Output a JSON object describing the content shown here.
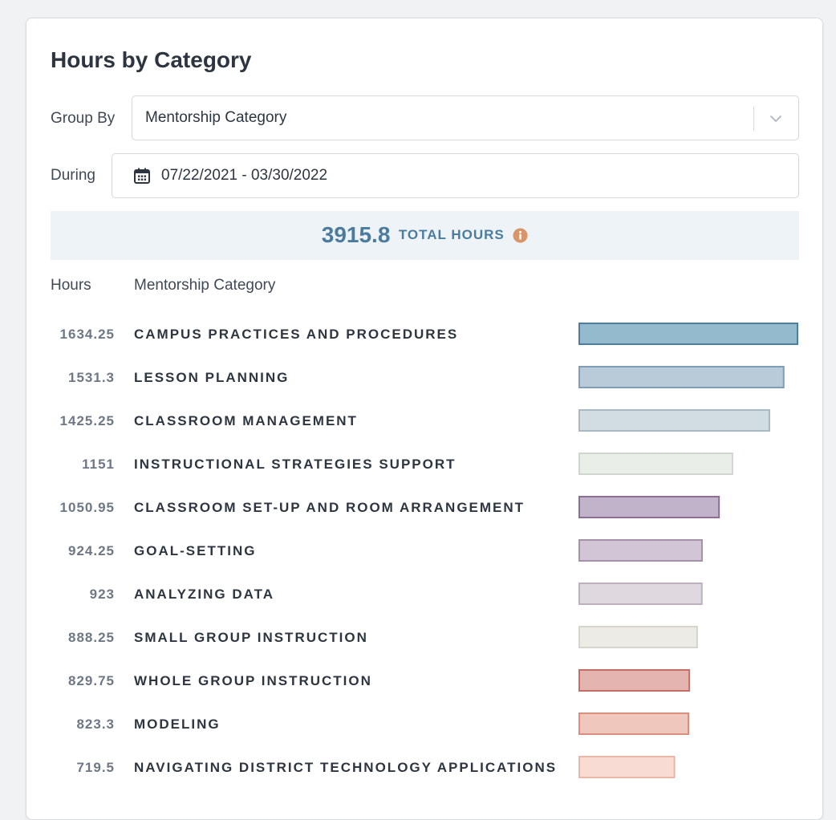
{
  "card": {
    "title": "Hours by Category",
    "group_by_label": "Group By",
    "group_by_value": "Mentorship Category",
    "during_label": "During",
    "date_range": "07/22/2021 - 03/30/2022",
    "total_hours": "3915.8",
    "total_label": "TOTAL HOURS",
    "col_hours": "Hours",
    "col_category": "Mentorship Category"
  },
  "icons": {
    "chevron": "chevron-down-icon",
    "calendar": "calendar-icon",
    "info": "info-icon"
  },
  "colors": {
    "accent": "#4b7c9d",
    "info_icon": "#d9956a"
  },
  "chart_data": {
    "type": "bar",
    "orientation": "horizontal",
    "categories": [
      "CAMPUS PRACTICES AND PROCEDURES",
      "LESSON PLANNING",
      "CLASSROOM MANAGEMENT",
      "INSTRUCTIONAL STRATEGIES SUPPORT",
      "CLASSROOM SET-UP AND ROOM ARRANGEMENT",
      "GOAL-SETTING",
      "ANALYZING DATA",
      "SMALL GROUP INSTRUCTION",
      "WHOLE GROUP INSTRUCTION",
      "MODELING",
      "NAVIGATING DISTRICT TECHNOLOGY APPLICATIONS"
    ],
    "values": [
      1634.25,
      1531.3,
      1425.25,
      1151,
      1050.95,
      924.25,
      923,
      888.25,
      829.75,
      823.3,
      719.5
    ],
    "value_labels": [
      "1634.25",
      "1531.3",
      "1425.25",
      "1151",
      "1050.95",
      "924.25",
      "923",
      "888.25",
      "829.75",
      "823.3",
      "719.5"
    ],
    "bar_fills": [
      "#93bbcd",
      "#b9cad8",
      "#d2dde1",
      "#e9eee9",
      "#c1b4ca",
      "#d2c6d6",
      "#dfd8de",
      "#ecebe6",
      "#e4b5b0",
      "#efc7bd",
      "#f8dcd3"
    ],
    "bar_strokes": [
      "#4f7e9c",
      "#7f9db5",
      "#a8b9c2",
      "#cfd6cf",
      "#8b6f93",
      "#a691ab",
      "#bfb0bd",
      "#d7d4cb",
      "#c76e64",
      "#d98f7d",
      "#eab6a6"
    ],
    "xlim": [
      0,
      1634.25
    ],
    "grid": false,
    "legend": "none"
  }
}
